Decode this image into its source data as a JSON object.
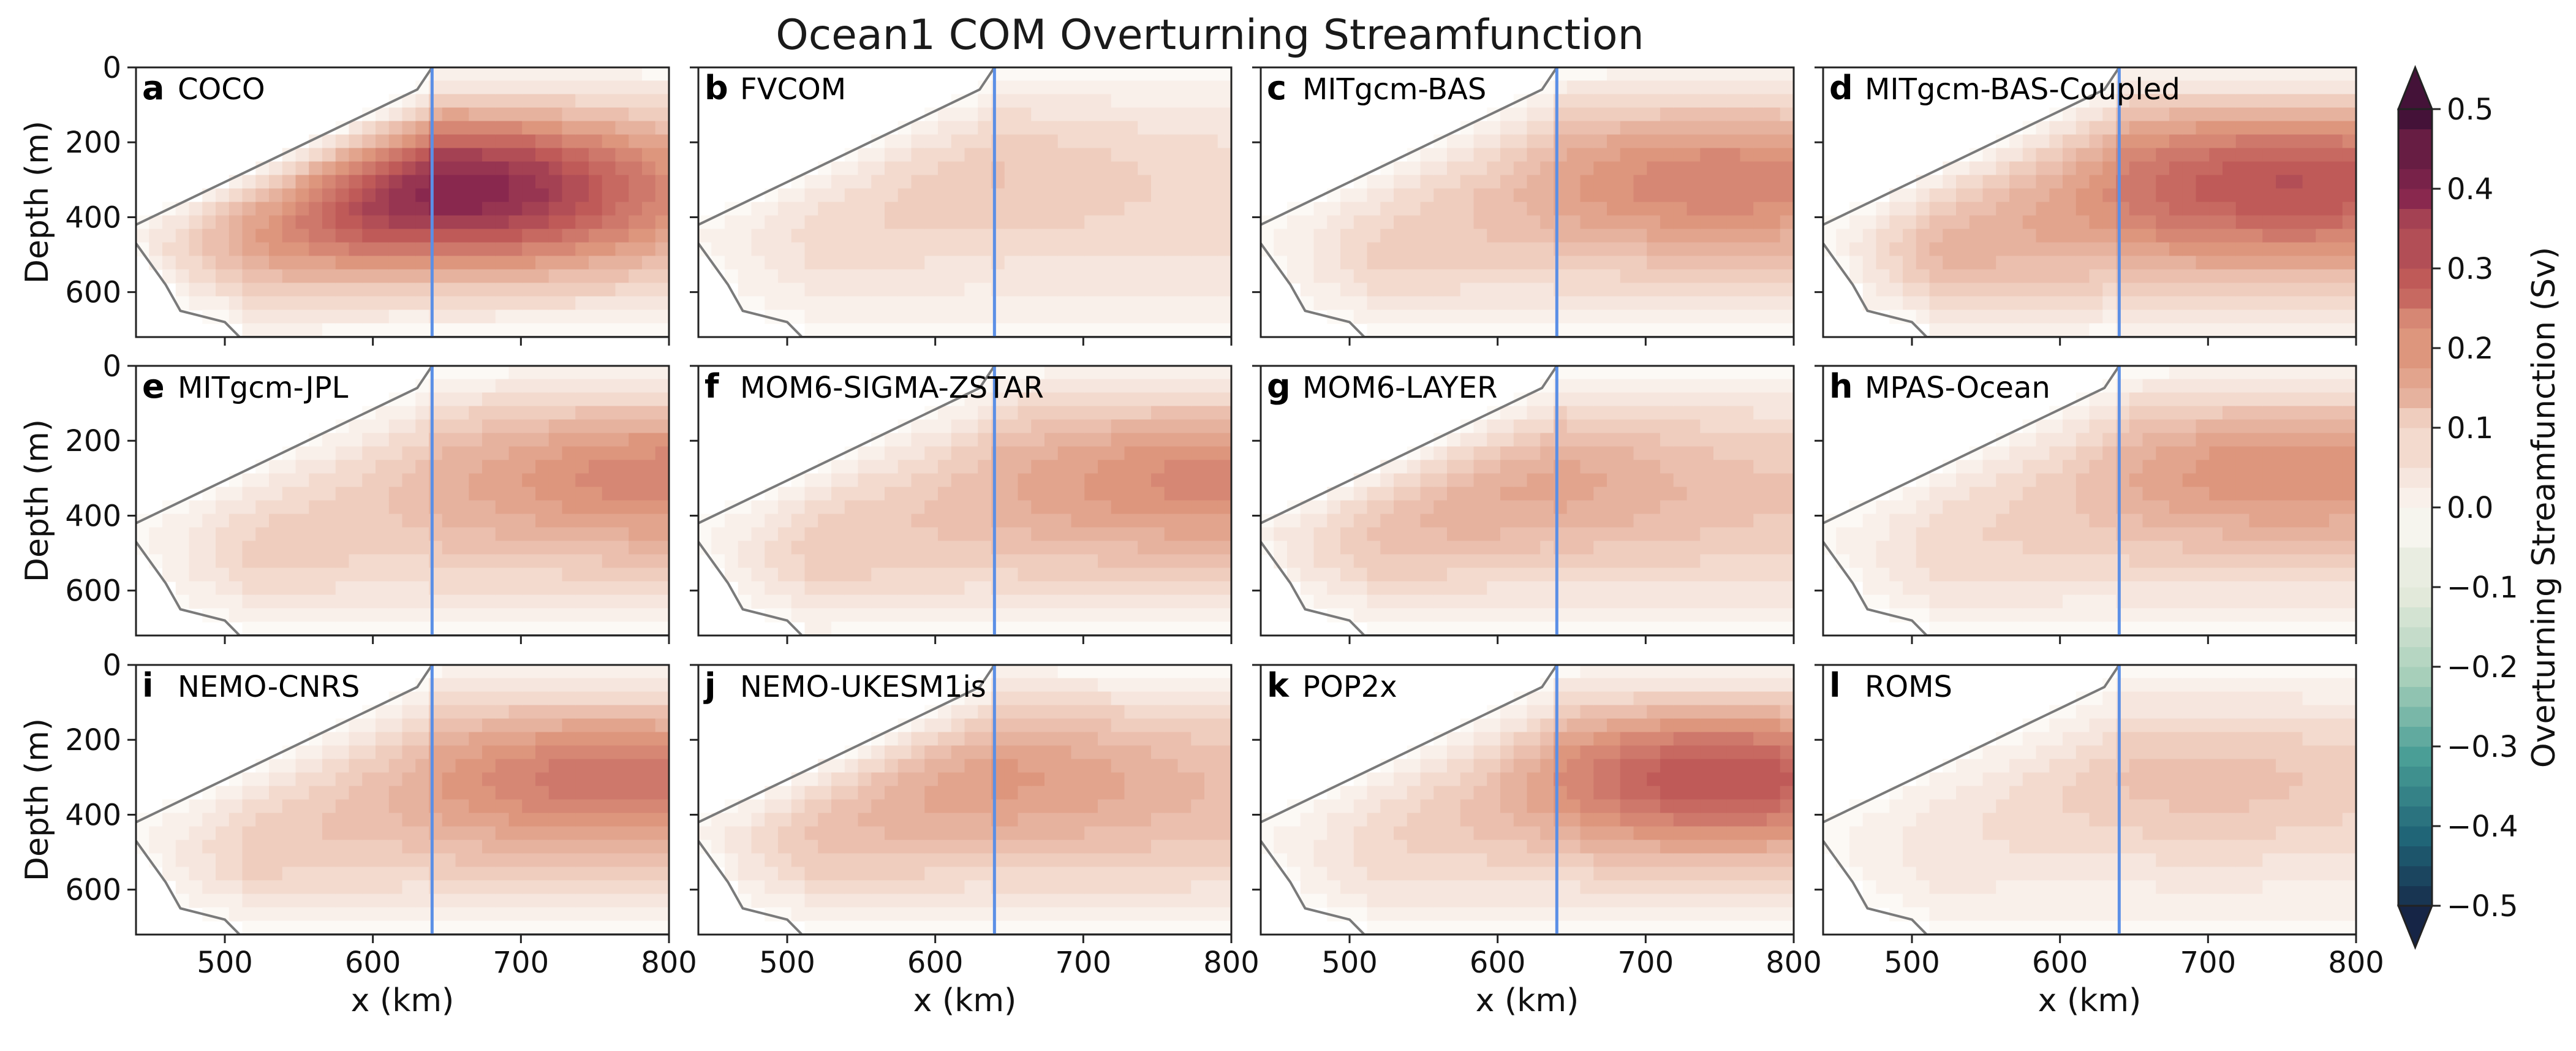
{
  "figure": {
    "title": "Ocean1 COM Overturning Streamfunction"
  },
  "chart_data": {
    "type": "heatmap",
    "title": "Ocean1 COM Overturning Streamfunction",
    "xlabel": "x (km)",
    "ylabel": "Depth (m)",
    "xlim": [
      440,
      800
    ],
    "ylim": [
      720,
      0
    ],
    "x_ticks": [
      500,
      600,
      700,
      800
    ],
    "y_ticks": [
      0,
      200,
      400,
      600
    ],
    "grounding_line_x_km": 640,
    "colorbar": {
      "label": "Overturning Streamfunction (Sv)",
      "min": -0.5,
      "max": 0.5,
      "ticks": [
        -0.5,
        -0.4,
        -0.3,
        -0.2,
        -0.1,
        0.0,
        0.1,
        0.2,
        0.3,
        0.4,
        0.5
      ],
      "tick_labels": [
        "−0.5",
        "−0.4",
        "−0.3",
        "−0.2",
        "−0.1",
        "0.0",
        "0.1",
        "0.2",
        "0.3",
        "0.4",
        "0.5"
      ],
      "colormap": "curl (teal-white-red)",
      "extend": "both"
    },
    "panels": [
      {
        "letter": "a",
        "model": "COCO",
        "peak_sv": 0.42,
        "peak_x_km": 655,
        "peak_depth_m": 300,
        "upstream_peak_sv": 0.22
      },
      {
        "letter": "b",
        "model": "FVCOM",
        "peak_sv": 0.13,
        "peak_x_km": 610,
        "peak_depth_m": 190,
        "upstream_peak_sv": 0.13
      },
      {
        "letter": "c",
        "model": "MITgcm-BAS",
        "peak_sv": 0.25,
        "peak_x_km": 750,
        "peak_depth_m": 240,
        "upstream_peak_sv": 0.2
      },
      {
        "letter": "d",
        "model": "MITgcm-BAS-Coupled",
        "peak_sv": 0.33,
        "peak_x_km": 755,
        "peak_depth_m": 250,
        "upstream_peak_sv": 0.31
      },
      {
        "letter": "e",
        "model": "MITgcm-JPL",
        "peak_sv": 0.25,
        "peak_x_km": 795,
        "peak_depth_m": 220,
        "upstream_peak_sv": 0.21
      },
      {
        "letter": "f",
        "model": "MOM6-SIGMA-ZSTAR",
        "peak_sv": 0.24,
        "peak_x_km": 790,
        "peak_depth_m": 220,
        "upstream_peak_sv": 0.23
      },
      {
        "letter": "g",
        "model": "MOM6-LAYER",
        "peak_sv": 0.19,
        "peak_x_km": 600,
        "peak_depth_m": 240,
        "upstream_peak_sv": 0.19
      },
      {
        "letter": "h",
        "model": "MPAS-Ocean",
        "peak_sv": 0.24,
        "peak_x_km": 755,
        "peak_depth_m": 200,
        "upstream_peak_sv": 0.18
      },
      {
        "letter": "i",
        "model": "NEMO-CNRS",
        "peak_sv": 0.27,
        "peak_x_km": 762,
        "peak_depth_m": 240,
        "upstream_peak_sv": 0.22
      },
      {
        "letter": "j",
        "model": "NEMO-UKESM1is",
        "peak_sv": 0.21,
        "peak_x_km": 628,
        "peak_depth_m": 220,
        "upstream_peak_sv": 0.21
      },
      {
        "letter": "k",
        "model": "POP2x",
        "peak_sv": 0.33,
        "peak_x_km": 750,
        "peak_depth_m": 250,
        "upstream_peak_sv": 0.17
      },
      {
        "letter": "l",
        "model": "ROMS",
        "peak_sv": 0.13,
        "peak_x_km": 700,
        "peak_depth_m": 250,
        "upstream_peak_sv": 0.11
      }
    ]
  }
}
